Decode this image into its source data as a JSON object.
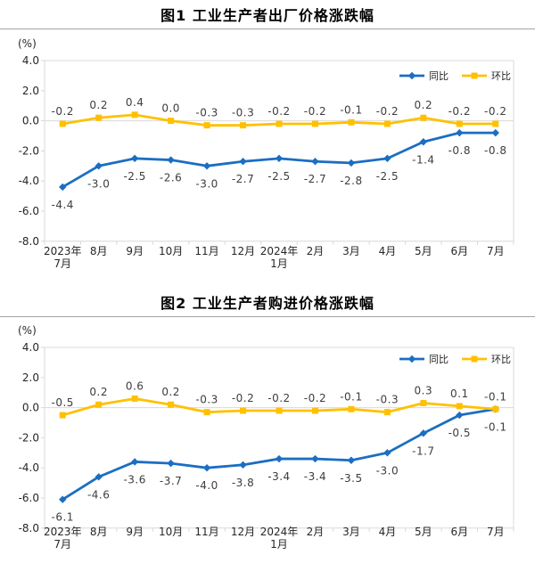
{
  "page": {
    "background": "#ffffff"
  },
  "colors": {
    "yoy_blue": "#1b6ec2",
    "mom_yellow": "#ffc000",
    "plot_border": "#d9d9d9",
    "zero_line": "#d9d9d9",
    "title_rule": "#a3a3a3"
  },
  "chart_data": [
    {
      "type": "line",
      "title": "图1 工业生产者出厂价格涨跌幅",
      "unit_label": "(%)",
      "ylim": [
        -8.0,
        4.0
      ],
      "y_tick_step": 2.0,
      "y_ticks": [
        "4.0",
        "2.0",
        "0.0",
        "-2.0",
        "-4.0",
        "-6.0",
        "-8.0"
      ],
      "grid": "zero-line-only",
      "legend_position": "top-right",
      "categories": [
        [
          "2023年",
          "7月"
        ],
        [
          "8月"
        ],
        [
          "9月"
        ],
        [
          "10月"
        ],
        [
          "11月"
        ],
        [
          "12月"
        ],
        [
          "2024年",
          "1月"
        ],
        [
          "2月"
        ],
        [
          "3月"
        ],
        [
          "4月"
        ],
        [
          "5月"
        ],
        [
          "6月"
        ],
        [
          "7月"
        ]
      ],
      "series": [
        {
          "key": "yoy",
          "name": "同比",
          "color": "#1b6ec2",
          "marker": "diamond",
          "label_side": "below",
          "values": [
            -4.4,
            -3.0,
            -2.5,
            -2.6,
            -3.0,
            -2.7,
            -2.5,
            -2.7,
            -2.8,
            -2.5,
            -1.4,
            -0.8,
            -0.8
          ]
        },
        {
          "key": "mom",
          "name": "环比",
          "color": "#ffc000",
          "marker": "square",
          "label_side": "above",
          "values": [
            -0.2,
            0.2,
            0.4,
            0.0,
            -0.3,
            -0.3,
            -0.2,
            -0.2,
            -0.1,
            -0.2,
            0.2,
            -0.2,
            -0.2
          ]
        }
      ]
    },
    {
      "type": "line",
      "title": "图2 工业生产者购进价格涨跌幅",
      "unit_label": "(%)",
      "ylim": [
        -8.0,
        4.0
      ],
      "y_tick_step": 2.0,
      "y_ticks": [
        "4.0",
        "2.0",
        "0.0",
        "-2.0",
        "-4.0",
        "-6.0",
        "-8.0"
      ],
      "grid": "zero-line-only",
      "legend_position": "top-right",
      "categories": [
        [
          "2023年",
          "7月"
        ],
        [
          "8月"
        ],
        [
          "9月"
        ],
        [
          "10月"
        ],
        [
          "11月"
        ],
        [
          "12月"
        ],
        [
          "2024年",
          "1月"
        ],
        [
          "2月"
        ],
        [
          "3月"
        ],
        [
          "4月"
        ],
        [
          "5月"
        ],
        [
          "6月"
        ],
        [
          "7月"
        ]
      ],
      "series": [
        {
          "key": "yoy",
          "name": "同比",
          "color": "#1b6ec2",
          "marker": "diamond",
          "label_side": "below",
          "values": [
            -6.1,
            -4.6,
            -3.6,
            -3.7,
            -4.0,
            -3.8,
            -3.4,
            -3.4,
            -3.5,
            -3.0,
            -1.7,
            -0.5,
            -0.1
          ]
        },
        {
          "key": "mom",
          "name": "环比",
          "color": "#ffc000",
          "marker": "square",
          "label_side": "above",
          "values": [
            -0.5,
            0.2,
            0.6,
            0.2,
            -0.3,
            -0.2,
            -0.2,
            -0.2,
            -0.1,
            -0.3,
            0.3,
            0.1,
            -0.1
          ]
        }
      ]
    }
  ]
}
